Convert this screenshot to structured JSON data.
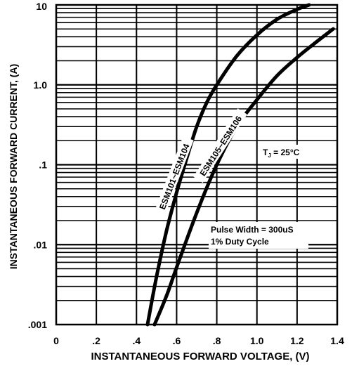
{
  "chart_data": {
    "type": "line",
    "title": "",
    "xlabel": "INSTANTANEOUS FORWARD VOLTAGE, (V)",
    "ylabel": "INSTANTANEOUS FORWARD CURRENT, (A)",
    "x_scale": "linear",
    "y_scale": "log",
    "xlim": [
      0,
      1.4
    ],
    "ylim": [
      0.001,
      10
    ],
    "x_ticks": [
      0,
      0.2,
      0.4,
      0.6,
      0.8,
      1.0,
      1.2,
      1.4
    ],
    "x_tick_labels": [
      "0",
      ".2",
      ".4",
      ".6",
      ".8",
      "1.0",
      "1.2",
      "1.4"
    ],
    "y_ticks": [
      0.001,
      0.01,
      0.1,
      1,
      10
    ],
    "y_tick_labels": [
      ".001",
      ".01",
      ".1",
      "1.0",
      "10"
    ],
    "grid": true,
    "series": [
      {
        "name": "ESM101~ESM104",
        "x": [
          0.455,
          0.5,
          0.55,
          0.6,
          0.65,
          0.7,
          0.75,
          0.8,
          0.9,
          1.0,
          1.1,
          1.2,
          1.26
        ],
        "y": [
          0.001,
          0.004,
          0.015,
          0.045,
          0.12,
          0.3,
          0.6,
          1.0,
          2.3,
          4.2,
          6.6,
          8.8,
          10.0
        ]
      },
      {
        "name": "ESM105~ESM106",
        "x": [
          0.49,
          0.55,
          0.6,
          0.7,
          0.8,
          0.9,
          1.0,
          1.1,
          1.2,
          1.3,
          1.38
        ],
        "y": [
          0.001,
          0.0023,
          0.0052,
          0.025,
          0.1,
          0.3,
          0.65,
          1.3,
          2.2,
          3.5,
          5.0
        ]
      }
    ],
    "annotations": [
      {
        "text": "T",
        "sub": "J",
        "rest": " = 25°C"
      },
      {
        "text": "Pulse Width = 300uS"
      },
      {
        "text": "1% Duty Cycle"
      }
    ]
  }
}
